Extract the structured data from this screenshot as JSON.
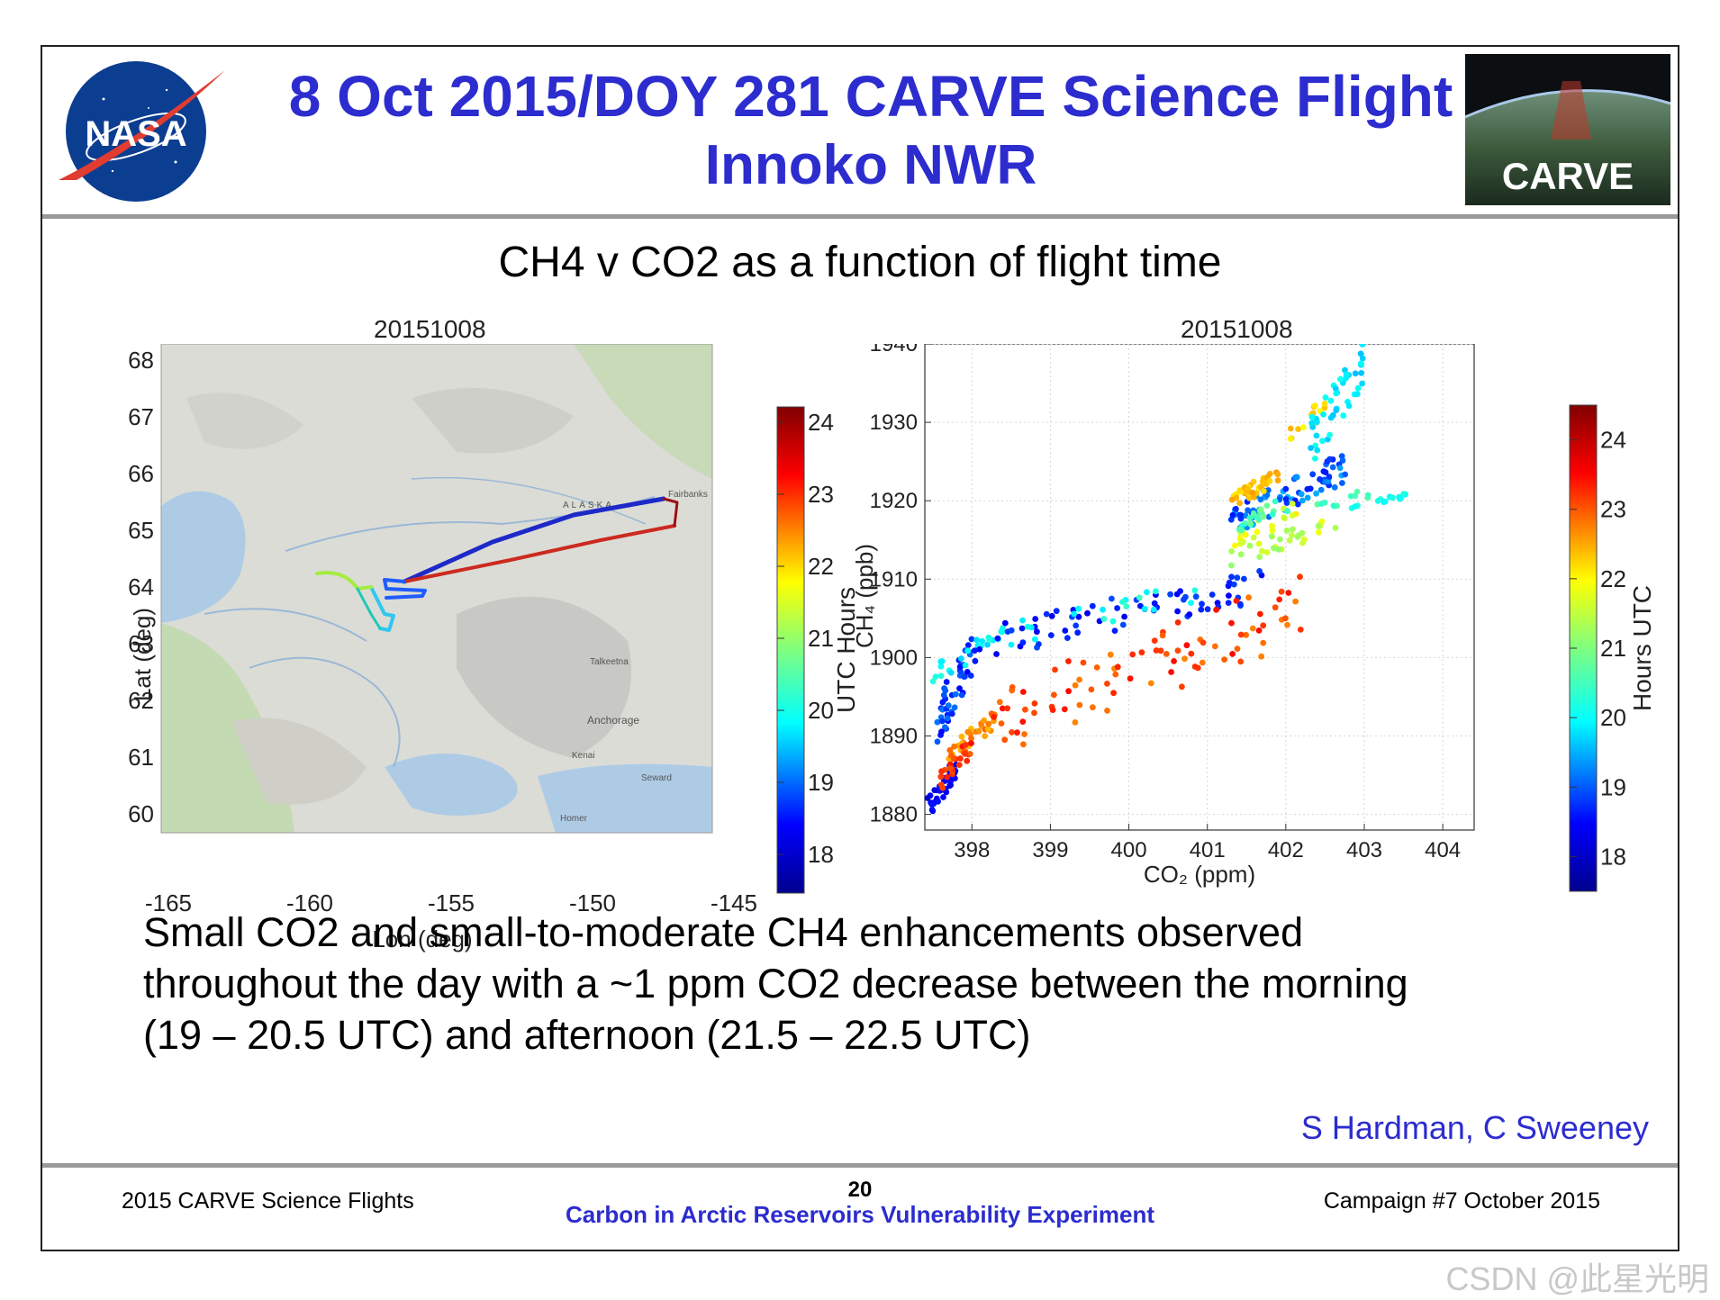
{
  "header": {
    "title_line1": "8 Oct 2015/DOY 281 CARVE Science Flight",
    "title_line2": "Innoko NWR",
    "nasa_logo_text": "NASA",
    "carve_logo_text": "CARVE"
  },
  "subtitle": "CH4 v CO2 as a function of flight time",
  "map_panel": {
    "title": "20151008",
    "xlabel": "Lon (deg)",
    "ylabel": "Lat (deg)",
    "xticks": [
      "-165",
      "-160",
      "-155",
      "-150",
      "-145"
    ],
    "yticks": [
      "68",
      "67",
      "66",
      "65",
      "64",
      "63",
      "62",
      "61",
      "60"
    ],
    "map_labels": [
      "ALASKA",
      "Fairbanks",
      "Talkeetna",
      "Anchorage",
      "Kenai",
      "Seward",
      "Homer"
    ],
    "colorbar_label": "UTC Hours",
    "colorbar_ticks": [
      "24",
      "23",
      "22",
      "21",
      "20",
      "19",
      "18"
    ]
  },
  "chart_data": {
    "type": "scatter",
    "title": "20151008",
    "xlabel": "CO₂ (ppm)",
    "ylabel": "CH₄ (ppb)",
    "xlim": [
      397.4,
      404.4
    ],
    "ylim": [
      1878,
      1940
    ],
    "xticks": [
      398,
      399,
      400,
      401,
      402,
      403,
      404
    ],
    "yticks": [
      1880,
      1890,
      1900,
      1910,
      1920,
      1930,
      1940
    ],
    "colorbar": {
      "label": "Hours UTC",
      "range": [
        17.5,
        24.5
      ],
      "ticks": [
        18,
        19,
        20,
        21,
        22,
        23,
        24
      ]
    },
    "point_groups": [
      {
        "hour_range": [
          18.0,
          18.6
        ],
        "co2_range": [
          397.4,
          397.8
        ],
        "ch4_range": [
          1879,
          1887
        ],
        "count": 45
      },
      {
        "hour_range": [
          18.3,
          19.2
        ],
        "co2_range": [
          397.5,
          398.0
        ],
        "ch4_range": [
          1888,
          1903
        ],
        "count": 45
      },
      {
        "hour_range": [
          19.8,
          20.4
        ],
        "co2_range": [
          397.5,
          398.4
        ],
        "ch4_range": [
          1897,
          1904
        ],
        "count": 25
      },
      {
        "hour_range": [
          22.3,
          23.0
        ],
        "co2_range": [
          397.7,
          398.3
        ],
        "ch4_range": [
          1887,
          1893
        ],
        "count": 35
      },
      {
        "hour_range": [
          23.0,
          23.6
        ],
        "co2_range": [
          397.6,
          398.0
        ],
        "ch4_range": [
          1883,
          1890
        ],
        "count": 25
      },
      {
        "hour_range": [
          18.2,
          18.9
        ],
        "co2_range": [
          398.0,
          401.7
        ],
        "ch4_range": [
          1900,
          1911
        ],
        "count": 70
      },
      {
        "hour_range": [
          20.0,
          20.6
        ],
        "co2_range": [
          398.5,
          401.0
        ],
        "ch4_range": [
          1902,
          1910
        ],
        "count": 20
      },
      {
        "hour_range": [
          22.7,
          23.6
        ],
        "co2_range": [
          398.2,
          402.3
        ],
        "ch4_range": [
          1888,
          1910
        ],
        "count": 90
      },
      {
        "hour_range": [
          18.5,
          19.6
        ],
        "co2_range": [
          401.3,
          402.8
        ],
        "ch4_range": [
          1916,
          1926
        ],
        "count": 80
      },
      {
        "hour_range": [
          22.0,
          22.6
        ],
        "co2_range": [
          401.3,
          401.9
        ],
        "ch4_range": [
          1919,
          1924
        ],
        "count": 40
      },
      {
        "hour_range": [
          21.0,
          21.8
        ],
        "co2_range": [
          401.3,
          402.7
        ],
        "ch4_range": [
          1912,
          1918
        ],
        "count": 30
      },
      {
        "hour_range": [
          21.5,
          22.0
        ],
        "co2_range": [
          401.3,
          402.2
        ],
        "ch4_range": [
          1914,
          1920
        ],
        "count": 20
      },
      {
        "hour_range": [
          21.8,
          22.4
        ],
        "co2_range": [
          402.0,
          402.5
        ],
        "ch4_range": [
          1927,
          1933
        ],
        "count": 15
      },
      {
        "hour_range": [
          19.7,
          20.3
        ],
        "co2_range": [
          402.3,
          403.0
        ],
        "ch4_range": [
          1925,
          1940
        ],
        "count": 45
      },
      {
        "hour_range": [
          20.4,
          21.0
        ],
        "co2_range": [
          401.4,
          401.9
        ],
        "ch4_range": [
          1916,
          1920
        ],
        "count": 20
      },
      {
        "hour_range": [
          20.0,
          20.4
        ],
        "co2_range": [
          402.8,
          403.6
        ],
        "ch4_range": [
          1919,
          1921
        ],
        "count": 15
      },
      {
        "hour_range": [
          20.4,
          20.8
        ],
        "co2_range": [
          402.0,
          403.2
        ],
        "ch4_range": [
          1918,
          1922
        ],
        "count": 12
      }
    ]
  },
  "body_text": [
    "Small CO2 and small-to-moderate CH4 enhancements observed",
    "throughout the day with a ~1 ppm CO2 decrease between the morning",
    "(19 – 20.5 UTC) and afternoon (21.5 – 22.5 UTC)"
  ],
  "credit": "S Hardman, C Sweeney",
  "footer": {
    "left": "2015 CARVE Science Flights",
    "page_number": "20",
    "center": "Carbon in Arctic Reservoirs Vulnerability Experiment",
    "right": "Campaign #7 October 2015"
  },
  "watermark": "CSDN @此星光明",
  "colors": {
    "title_blue": "#2c2ccf",
    "separator_gray": "#9a9a9a"
  }
}
